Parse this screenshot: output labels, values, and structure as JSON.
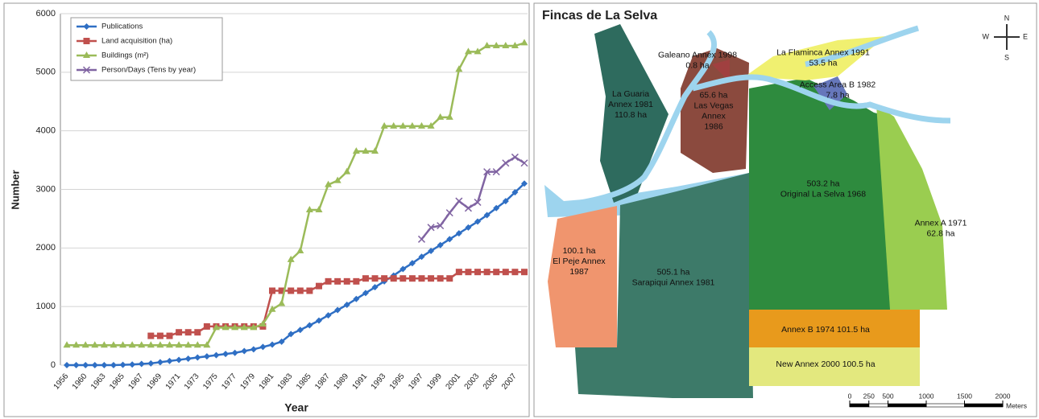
{
  "chart_data": {
    "type": "line",
    "xlabel": "Year",
    "ylabel": "Number",
    "categories": [
      "1956",
      null,
      "1960",
      null,
      "1963",
      null,
      "1965",
      null,
      "1967",
      null,
      "1969",
      null,
      "1971",
      null,
      "1973",
      null,
      "1975",
      null,
      "1977",
      null,
      "1979",
      null,
      "1981",
      null,
      "1983",
      null,
      "1985",
      null,
      "1987",
      null,
      "1989",
      null,
      "1991",
      null,
      "1993",
      null,
      "1995",
      null,
      "1997",
      null,
      "1999",
      null,
      "2001",
      null,
      "2003",
      null,
      "2005",
      null,
      "2007",
      null
    ],
    "series": [
      {
        "name": "Publications",
        "color": "#2f6fc4",
        "marker": "diamond",
        "values": [
          0,
          0,
          0,
          0,
          0,
          0,
          5,
          10,
          20,
          30,
          50,
          70,
          90,
          110,
          130,
          150,
          170,
          190,
          210,
          240,
          270,
          310,
          350,
          400,
          530,
          600,
          680,
          760,
          850,
          940,
          1030,
          1130,
          1230,
          1330,
          1430,
          1530,
          1640,
          1740,
          1850,
          1950,
          2050,
          2150,
          2250,
          2350,
          2450,
          2560,
          2680,
          2800,
          2950,
          3100
        ]
      },
      {
        "name": "Land acquisition (ha)",
        "color": "#c0504d",
        "marker": "square",
        "values": [
          null,
          null,
          null,
          null,
          null,
          null,
          null,
          null,
          null,
          500,
          500,
          500,
          560,
          560,
          560,
          660,
          660,
          660,
          660,
          660,
          660,
          660,
          1270,
          1270,
          1270,
          1270,
          1270,
          1350,
          1430,
          1430,
          1430,
          1430,
          1480,
          1480,
          1480,
          1480,
          1480,
          1480,
          1480,
          1480,
          1480,
          1480,
          1590,
          1590,
          1590,
          1590,
          1590,
          1590,
          1590,
          1590
        ]
      },
      {
        "name": "Buildings (m²)",
        "color": "#9bbb59",
        "marker": "triangle",
        "values": [
          340,
          340,
          340,
          340,
          340,
          340,
          340,
          340,
          340,
          340,
          340,
          340,
          340,
          340,
          340,
          340,
          640,
          640,
          640,
          640,
          640,
          700,
          950,
          1050,
          1800,
          1950,
          2650,
          2650,
          3080,
          3150,
          3300,
          3650,
          3650,
          3650,
          4080,
          4080,
          4080,
          4080,
          4080,
          4080,
          4230,
          4230,
          5050,
          5350,
          5350,
          5450,
          5450,
          5450,
          5450,
          5500
        ]
      },
      {
        "name": "Person/Days (Tens by year)",
        "color": "#8064a2",
        "marker": "x",
        "values": [
          null,
          null,
          null,
          null,
          null,
          null,
          null,
          null,
          null,
          null,
          null,
          null,
          null,
          null,
          null,
          null,
          null,
          null,
          null,
          null,
          null,
          null,
          null,
          null,
          null,
          null,
          null,
          null,
          null,
          null,
          null,
          null,
          null,
          null,
          null,
          null,
          null,
          null,
          2150,
          2350,
          2380,
          2600,
          2800,
          2680,
          2780,
          3300,
          3300,
          3450,
          3550,
          3450
        ]
      }
    ],
    "ylim": [
      0,
      6000
    ],
    "yticks": [
      0,
      1000,
      2000,
      3000,
      4000,
      5000,
      6000
    ],
    "grid": true
  },
  "map": {
    "title": "Fincas de La Selva",
    "compass": {
      "n": "N",
      "e": "E",
      "s": "S",
      "w": "W"
    },
    "parcels": [
      {
        "label": [
          "Galeano Annex 1998",
          "0.8 ha"
        ]
      },
      {
        "label": [
          "La Flaminca Annex 1991",
          "53.5 ha"
        ]
      },
      {
        "label": [
          "Access Area B 1982",
          "7.8 ha"
        ]
      },
      {
        "label": [
          "La Guaria",
          "Annex 1981",
          "110.8 ha"
        ]
      },
      {
        "label": [
          "65.6 ha",
          "Las Vegas",
          "Annex",
          "1986"
        ]
      },
      {
        "label": [
          "503.2 ha",
          "Original La Selva 1968"
        ]
      },
      {
        "label": [
          "Annex A 1971",
          "62.8 ha"
        ]
      },
      {
        "label": [
          "100.1 ha",
          "El Peje Annex",
          "1987"
        ]
      },
      {
        "label": [
          "505.1 ha",
          "Sarapiqui Annex 1981"
        ]
      },
      {
        "label": [
          "Annex B 1974    101.5 ha"
        ]
      },
      {
        "label": [
          "New Annex 2000    100.5 ha"
        ]
      }
    ],
    "scale": {
      "ticks": [
        0,
        250,
        500,
        1000,
        1500,
        2000
      ],
      "unit": "Meters"
    }
  }
}
